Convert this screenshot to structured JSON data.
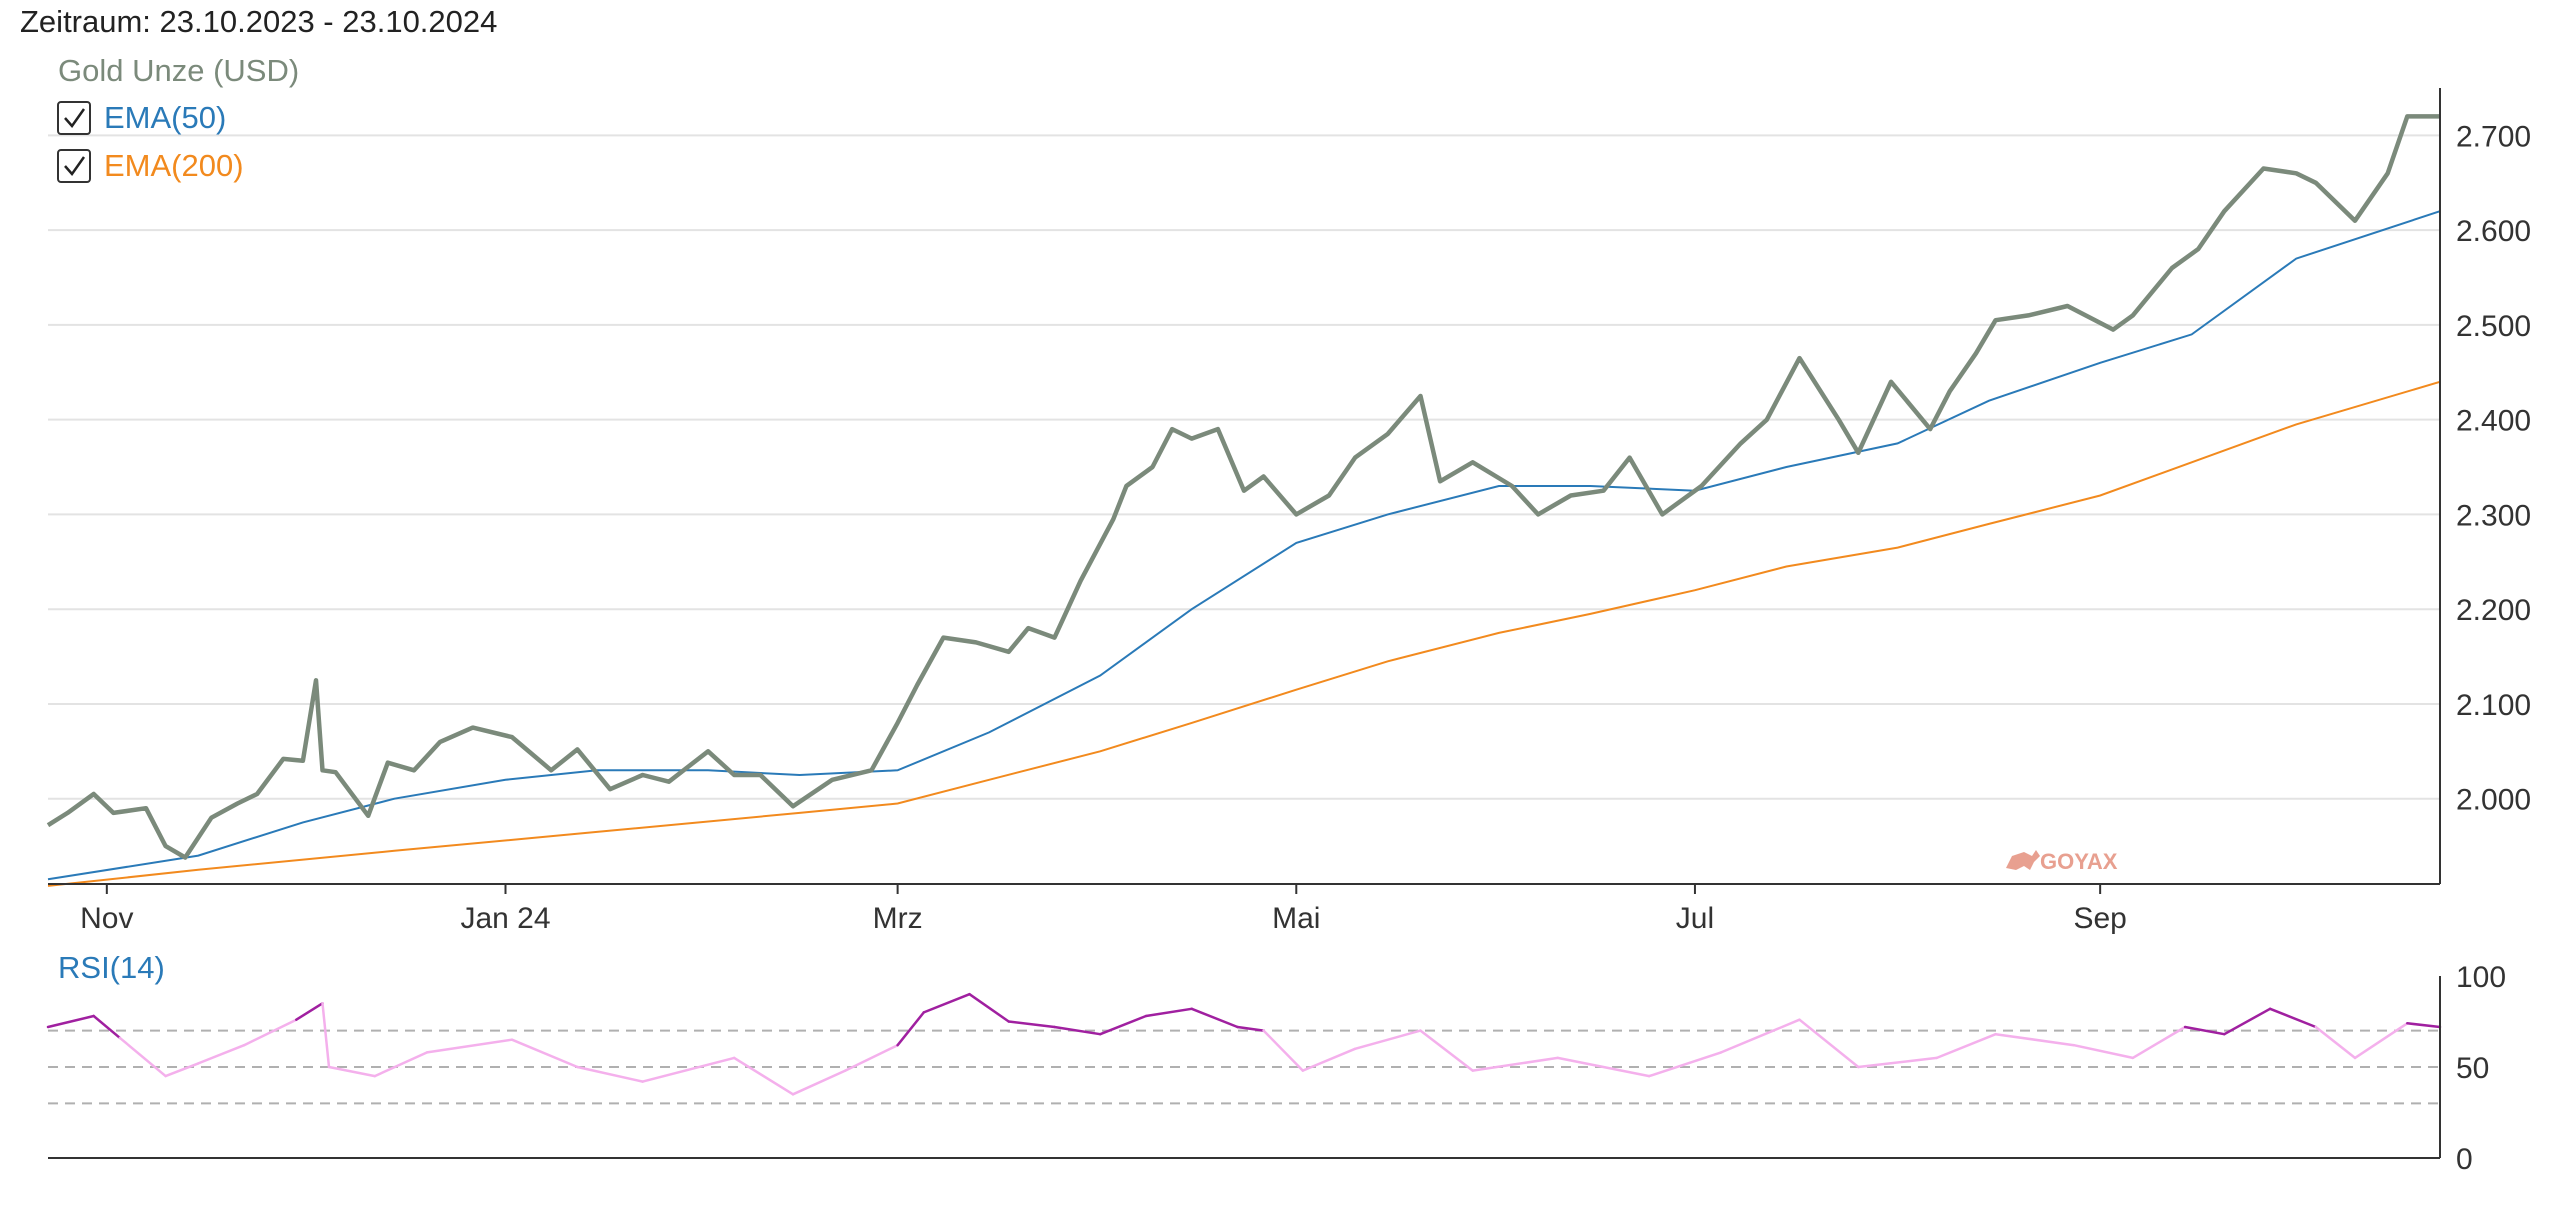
{
  "period_text": "Zeitraum: 23.10.2023 - 23.10.2024",
  "watermark": "GOYAX",
  "colors": {
    "price": "#7b8a7b",
    "ema50": "#2a7ab8",
    "ema200": "#f28a1e",
    "rsi_high": "#a020a0",
    "rsi_normal": "#f4b0ec",
    "grid": "#e3e3e3",
    "axis": "#333333",
    "dashed": "#b0b0b0",
    "watermark": "#e8a090"
  },
  "chart_data": [
    {
      "type": "line",
      "x_axis": {
        "type": "date",
        "range": [
          "2023-10-23",
          "2024-10-23"
        ],
        "tick_labels": [
          {
            "date": "2023-11-01",
            "label": "Nov"
          },
          {
            "date": "2024-01-01",
            "label": "Jan 24"
          },
          {
            "date": "2024-03-01",
            "label": "Mrz"
          },
          {
            "date": "2024-05-01",
            "label": "Mai"
          },
          {
            "date": "2024-07-01",
            "label": "Jul"
          },
          {
            "date": "2024-09-01",
            "label": "Sep"
          }
        ]
      },
      "y_axis": {
        "position": "right",
        "range": [
          1910,
          2750
        ],
        "ticks": [
          2000,
          2100,
          2200,
          2300,
          2400,
          2500,
          2600,
          2700
        ],
        "tick_labels": [
          "2.000",
          "2.100",
          "2.200",
          "2.300",
          "2.400",
          "2.500",
          "2.600",
          "2.700"
        ],
        "grid": true
      },
      "legend": {
        "placement": "top-left"
      },
      "series": [
        {
          "name": "Gold Unze (USD)",
          "points": [
            [
              "2023-10-23",
              1972
            ],
            [
              "2023-10-26",
              1985
            ],
            [
              "2023-10-30",
              2005
            ],
            [
              "2023-11-02",
              1985
            ],
            [
              "2023-11-07",
              1990
            ],
            [
              "2023-11-10",
              1950
            ],
            [
              "2023-11-13",
              1938
            ],
            [
              "2023-11-17",
              1980
            ],
            [
              "2023-11-21",
              1995
            ],
            [
              "2023-11-24",
              2005
            ],
            [
              "2023-11-28",
              2042
            ],
            [
              "2023-12-01",
              2040
            ],
            [
              "2023-12-03",
              2125
            ],
            [
              "2023-12-04",
              2030
            ],
            [
              "2023-12-06",
              2028
            ],
            [
              "2023-12-11",
              1982
            ],
            [
              "2023-12-14",
              2038
            ],
            [
              "2023-12-18",
              2030
            ],
            [
              "2023-12-22",
              2060
            ],
            [
              "2023-12-27",
              2075
            ],
            [
              "2024-01-02",
              2065
            ],
            [
              "2024-01-08",
              2030
            ],
            [
              "2024-01-12",
              2052
            ],
            [
              "2024-01-17",
              2010
            ],
            [
              "2024-01-22",
              2025
            ],
            [
              "2024-01-26",
              2018
            ],
            [
              "2024-02-01",
              2050
            ],
            [
              "2024-02-05",
              2025
            ],
            [
              "2024-02-09",
              2025
            ],
            [
              "2024-02-14",
              1992
            ],
            [
              "2024-02-20",
              2020
            ],
            [
              "2024-02-26",
              2030
            ],
            [
              "2024-03-01",
              2080
            ],
            [
              "2024-03-04",
              2120
            ],
            [
              "2024-03-08",
              2170
            ],
            [
              "2024-03-13",
              2165
            ],
            [
              "2024-03-18",
              2155
            ],
            [
              "2024-03-21",
              2180
            ],
            [
              "2024-03-25",
              2170
            ],
            [
              "2024-03-29",
              2230
            ],
            [
              "2024-04-03",
              2295
            ],
            [
              "2024-04-05",
              2330
            ],
            [
              "2024-04-09",
              2350
            ],
            [
              "2024-04-12",
              2390
            ],
            [
              "2024-04-15",
              2380
            ],
            [
              "2024-04-19",
              2390
            ],
            [
              "2024-04-23",
              2325
            ],
            [
              "2024-04-26",
              2340
            ],
            [
              "2024-05-01",
              2300
            ],
            [
              "2024-05-06",
              2320
            ],
            [
              "2024-05-10",
              2360
            ],
            [
              "2024-05-15",
              2385
            ],
            [
              "2024-05-20",
              2425
            ],
            [
              "2024-05-23",
              2335
            ],
            [
              "2024-05-28",
              2355
            ],
            [
              "2024-06-03",
              2330
            ],
            [
              "2024-06-07",
              2300
            ],
            [
              "2024-06-12",
              2320
            ],
            [
              "2024-06-17",
              2325
            ],
            [
              "2024-06-21",
              2360
            ],
            [
              "2024-06-26",
              2300
            ],
            [
              "2024-07-02",
              2330
            ],
            [
              "2024-07-08",
              2375
            ],
            [
              "2024-07-12",
              2400
            ],
            [
              "2024-07-17",
              2465
            ],
            [
              "2024-07-23",
              2400
            ],
            [
              "2024-07-26",
              2365
            ],
            [
              "2024-07-31",
              2440
            ],
            [
              "2024-08-06",
              2390
            ],
            [
              "2024-08-09",
              2430
            ],
            [
              "2024-08-13",
              2470
            ],
            [
              "2024-08-16",
              2505
            ],
            [
              "2024-08-21",
              2510
            ],
            [
              "2024-08-27",
              2520
            ],
            [
              "2024-09-03",
              2495
            ],
            [
              "2024-09-06",
              2510
            ],
            [
              "2024-09-12",
              2560
            ],
            [
              "2024-09-16",
              2580
            ],
            [
              "2024-09-20",
              2620
            ],
            [
              "2024-09-26",
              2665
            ],
            [
              "2024-10-01",
              2660
            ],
            [
              "2024-10-04",
              2650
            ],
            [
              "2024-10-10",
              2610
            ],
            [
              "2024-10-15",
              2660
            ],
            [
              "2024-10-18",
              2720
            ],
            [
              "2024-10-23",
              2720
            ]
          ]
        },
        {
          "name": "EMA(50)",
          "points": [
            [
              "2023-10-23",
              1915
            ],
            [
              "2023-11-15",
              1940
            ],
            [
              "2023-12-01",
              1975
            ],
            [
              "2023-12-15",
              2000
            ],
            [
              "2024-01-01",
              2020
            ],
            [
              "2024-01-15",
              2030
            ],
            [
              "2024-02-01",
              2030
            ],
            [
              "2024-02-15",
              2025
            ],
            [
              "2024-03-01",
              2030
            ],
            [
              "2024-03-15",
              2070
            ],
            [
              "2024-04-01",
              2130
            ],
            [
              "2024-04-15",
              2200
            ],
            [
              "2024-05-01",
              2270
            ],
            [
              "2024-05-15",
              2300
            ],
            [
              "2024-06-01",
              2330
            ],
            [
              "2024-06-15",
              2330
            ],
            [
              "2024-07-01",
              2325
            ],
            [
              "2024-07-15",
              2350
            ],
            [
              "2024-08-01",
              2375
            ],
            [
              "2024-08-15",
              2420
            ],
            [
              "2024-09-01",
              2460
            ],
            [
              "2024-09-15",
              2490
            ],
            [
              "2024-10-01",
              2570
            ],
            [
              "2024-10-23",
              2620
            ]
          ]
        },
        {
          "name": "EMA(200)",
          "points": [
            [
              "2023-10-23",
              1908
            ],
            [
              "2023-11-15",
              1925
            ],
            [
              "2023-12-15",
              1945
            ],
            [
              "2024-01-15",
              1965
            ],
            [
              "2024-02-15",
              1985
            ],
            [
              "2024-03-01",
              1995
            ],
            [
              "2024-03-15",
              2020
            ],
            [
              "2024-04-01",
              2050
            ],
            [
              "2024-04-15",
              2080
            ],
            [
              "2024-05-01",
              2115
            ],
            [
              "2024-05-15",
              2145
            ],
            [
              "2024-06-01",
              2175
            ],
            [
              "2024-06-15",
              2195
            ],
            [
              "2024-07-01",
              2220
            ],
            [
              "2024-07-15",
              2245
            ],
            [
              "2024-08-01",
              2265
            ],
            [
              "2024-08-15",
              2290
            ],
            [
              "2024-09-01",
              2320
            ],
            [
              "2024-09-15",
              2355
            ],
            [
              "2024-10-01",
              2395
            ],
            [
              "2024-10-23",
              2440
            ]
          ]
        }
      ]
    },
    {
      "type": "line",
      "title": "RSI(14)",
      "y_axis": {
        "position": "right",
        "range": [
          0,
          100
        ],
        "ticks": [
          0,
          50,
          100
        ],
        "tick_labels": [
          "0",
          "50",
          "100"
        ],
        "dashed_lines": [
          30,
          50,
          70
        ]
      },
      "threshold_high": 70,
      "series": [
        {
          "name": "RSI(14)",
          "points": [
            [
              "2023-10-23",
              72
            ],
            [
              "2023-10-30",
              78
            ],
            [
              "2023-11-03",
              66
            ],
            [
              "2023-11-10",
              45
            ],
            [
              "2023-11-15",
              52
            ],
            [
              "2023-11-22",
              62
            ],
            [
              "2023-11-30",
              76
            ],
            [
              "2023-12-04",
              85
            ],
            [
              "2023-12-05",
              50
            ],
            [
              "2023-12-12",
              45
            ],
            [
              "2023-12-20",
              58
            ],
            [
              "2024-01-02",
              65
            ],
            [
              "2024-01-12",
              50
            ],
            [
              "2024-01-22",
              42
            ],
            [
              "2024-02-05",
              55
            ],
            [
              "2024-02-14",
              35
            ],
            [
              "2024-02-22",
              48
            ],
            [
              "2024-03-01",
              62
            ],
            [
              "2024-03-05",
              80
            ],
            [
              "2024-03-12",
              90
            ],
            [
              "2024-03-18",
              75
            ],
            [
              "2024-03-25",
              72
            ],
            [
              "2024-04-01",
              68
            ],
            [
              "2024-04-08",
              78
            ],
            [
              "2024-04-15",
              82
            ],
            [
              "2024-04-22",
              72
            ],
            [
              "2024-04-26",
              70
            ],
            [
              "2024-05-02",
              48
            ],
            [
              "2024-05-10",
              60
            ],
            [
              "2024-05-20",
              70
            ],
            [
              "2024-05-28",
              48
            ],
            [
              "2024-06-10",
              55
            ],
            [
              "2024-06-24",
              45
            ],
            [
              "2024-07-05",
              58
            ],
            [
              "2024-07-17",
              76
            ],
            [
              "2024-07-26",
              50
            ],
            [
              "2024-08-07",
              55
            ],
            [
              "2024-08-16",
              68
            ],
            [
              "2024-08-28",
              62
            ],
            [
              "2024-09-06",
              55
            ],
            [
              "2024-09-14",
              72
            ],
            [
              "2024-09-20",
              68
            ],
            [
              "2024-09-27",
              82
            ],
            [
              "2024-10-04",
              72
            ],
            [
              "2024-10-10",
              55
            ],
            [
              "2024-10-18",
              74
            ],
            [
              "2024-10-23",
              72
            ]
          ]
        }
      ]
    }
  ]
}
